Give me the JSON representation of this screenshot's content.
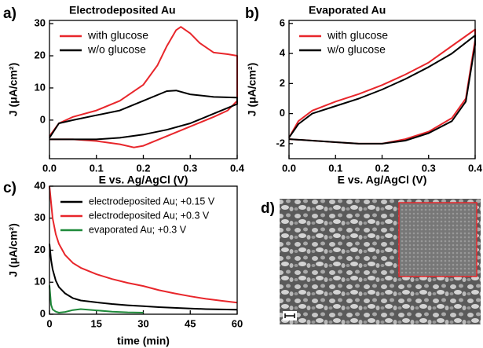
{
  "chart_data": [
    {
      "type": "line",
      "panel_label": "a)",
      "title": "Electrodeposited Au",
      "x_label": "E vs. Ag/AgCl (V)",
      "y_label": "J (μA/cm²)",
      "xlim": [
        0,
        0.4
      ],
      "xticks": [
        {
          "value": 0,
          "label": "0.0"
        },
        0.1,
        0.2,
        0.3,
        0.4
      ],
      "ylim": [
        -12,
        31
      ],
      "yticks": [
        0,
        10,
        20,
        30
      ],
      "legend": "upper left",
      "series": [
        {
          "name": "with glucose",
          "color": "#e8262b",
          "x": [
            0,
            0.02,
            0.05,
            0.1,
            0.15,
            0.2,
            0.23,
            0.25,
            0.27,
            0.28,
            0.3,
            0.32,
            0.35,
            0.38,
            0.4,
            0.4,
            0.38,
            0.35,
            0.3,
            0.25,
            0.2,
            0.18,
            0.15,
            0.1,
            0.05,
            0.02,
            0
          ],
          "values": [
            -5,
            -1,
            1,
            3,
            6,
            11,
            17,
            23,
            28,
            29,
            27,
            24,
            21,
            20.5,
            20,
            6,
            3,
            1,
            -2,
            -5,
            -8,
            -8.5,
            -7.5,
            -6.5,
            -6,
            -6,
            -6
          ]
        },
        {
          "name": "w/o glucose",
          "color": "#000000",
          "x": [
            0,
            0.02,
            0.05,
            0.1,
            0.15,
            0.2,
            0.25,
            0.27,
            0.3,
            0.35,
            0.4,
            0.4,
            0.35,
            0.3,
            0.25,
            0.2,
            0.15,
            0.1,
            0.05,
            0
          ],
          "values": [
            -5.5,
            -1,
            0,
            1.5,
            3,
            6,
            9,
            9.2,
            8,
            7.2,
            7,
            5,
            2,
            -1,
            -3,
            -4.5,
            -5.5,
            -6,
            -6,
            -6
          ]
        }
      ]
    },
    {
      "type": "line",
      "panel_label": "b)",
      "title": "Evaporated Au",
      "x_label": "E vs. Ag/AgCl (V)",
      "y_label": "J (μA/cm²)",
      "xlim": [
        0,
        0.4
      ],
      "xticks": [
        {
          "value": 0,
          "label": "0.0"
        },
        0.1,
        0.2,
        0.3,
        0.4
      ],
      "ylim": [
        -3,
        6.2
      ],
      "yticks": [
        -2,
        0,
        2,
        4,
        6
      ],
      "legend": "upper left",
      "series": [
        {
          "name": "with glucose",
          "color": "#e8262b",
          "x": [
            0,
            0.02,
            0.05,
            0.1,
            0.15,
            0.2,
            0.25,
            0.3,
            0.35,
            0.4,
            0.4,
            0.38,
            0.35,
            0.3,
            0.25,
            0.2,
            0.15,
            0.1,
            0.05,
            0
          ],
          "values": [
            -1.6,
            -0.5,
            0.2,
            0.8,
            1.3,
            1.9,
            2.6,
            3.4,
            4.5,
            5.6,
            4.9,
            1,
            -0.3,
            -1.2,
            -1.7,
            -2,
            -2,
            -1.9,
            -1.8,
            -1.7
          ]
        },
        {
          "name": "w/o glucose",
          "color": "#000000",
          "x": [
            0,
            0.02,
            0.05,
            0.1,
            0.15,
            0.2,
            0.25,
            0.3,
            0.35,
            0.4,
            0.4,
            0.38,
            0.35,
            0.3,
            0.25,
            0.2,
            0.15,
            0.1,
            0.05,
            0
          ],
          "values": [
            -1.6,
            -0.7,
            0,
            0.5,
            1,
            1.6,
            2.3,
            3.1,
            4,
            5.2,
            4.6,
            0.8,
            -0.5,
            -1.3,
            -1.8,
            -2,
            -2,
            -1.9,
            -1.8,
            -1.7
          ]
        }
      ]
    },
    {
      "type": "line",
      "panel_label": "c)",
      "x_label": "time (min)",
      "y_label": "J (μA/cm²)",
      "xlim": [
        0,
        60
      ],
      "xticks": [
        0,
        15,
        30,
        45,
        60
      ],
      "ylim": [
        0,
        40
      ],
      "yticks": [
        0,
        10,
        20,
        30,
        40
      ],
      "legend": "upper right",
      "x": [
        0,
        0.5,
        1,
        2,
        3,
        5,
        7.5,
        10,
        15,
        20,
        25,
        30,
        35,
        40,
        45,
        50,
        55,
        60
      ],
      "series": [
        {
          "name": "electrodeposited Au; +0.15 V",
          "color": "#000000",
          "values": [
            22,
            17,
            14,
            10.5,
            8.5,
            6.5,
            5,
            4.3,
            3.7,
            3.2,
            2.8,
            2.5,
            2.2,
            2,
            1.8,
            1.6,
            1.5,
            1.4
          ]
        },
        {
          "name": "electrodeposited Au; +0.3 V",
          "color": "#e8262b",
          "values": [
            40,
            35,
            30,
            25,
            22,
            18.5,
            16,
            14.5,
            12.5,
            11,
            9.8,
            8.8,
            7.5,
            6.5,
            5.6,
            4.8,
            4.2,
            3.6
          ]
        },
        {
          "name": "evaporated Au; +0.3 V",
          "color": "#1f8a3a",
          "values": [
            9,
            3,
            1.5,
            0.8,
            0.5,
            0.7,
            1.3,
            1.6,
            1.2,
            0.8,
            0.6,
            0.5,
            null,
            null,
            null,
            null,
            null,
            null
          ]
        }
      ]
    }
  ],
  "image": {
    "panel_label": "d)"
  }
}
